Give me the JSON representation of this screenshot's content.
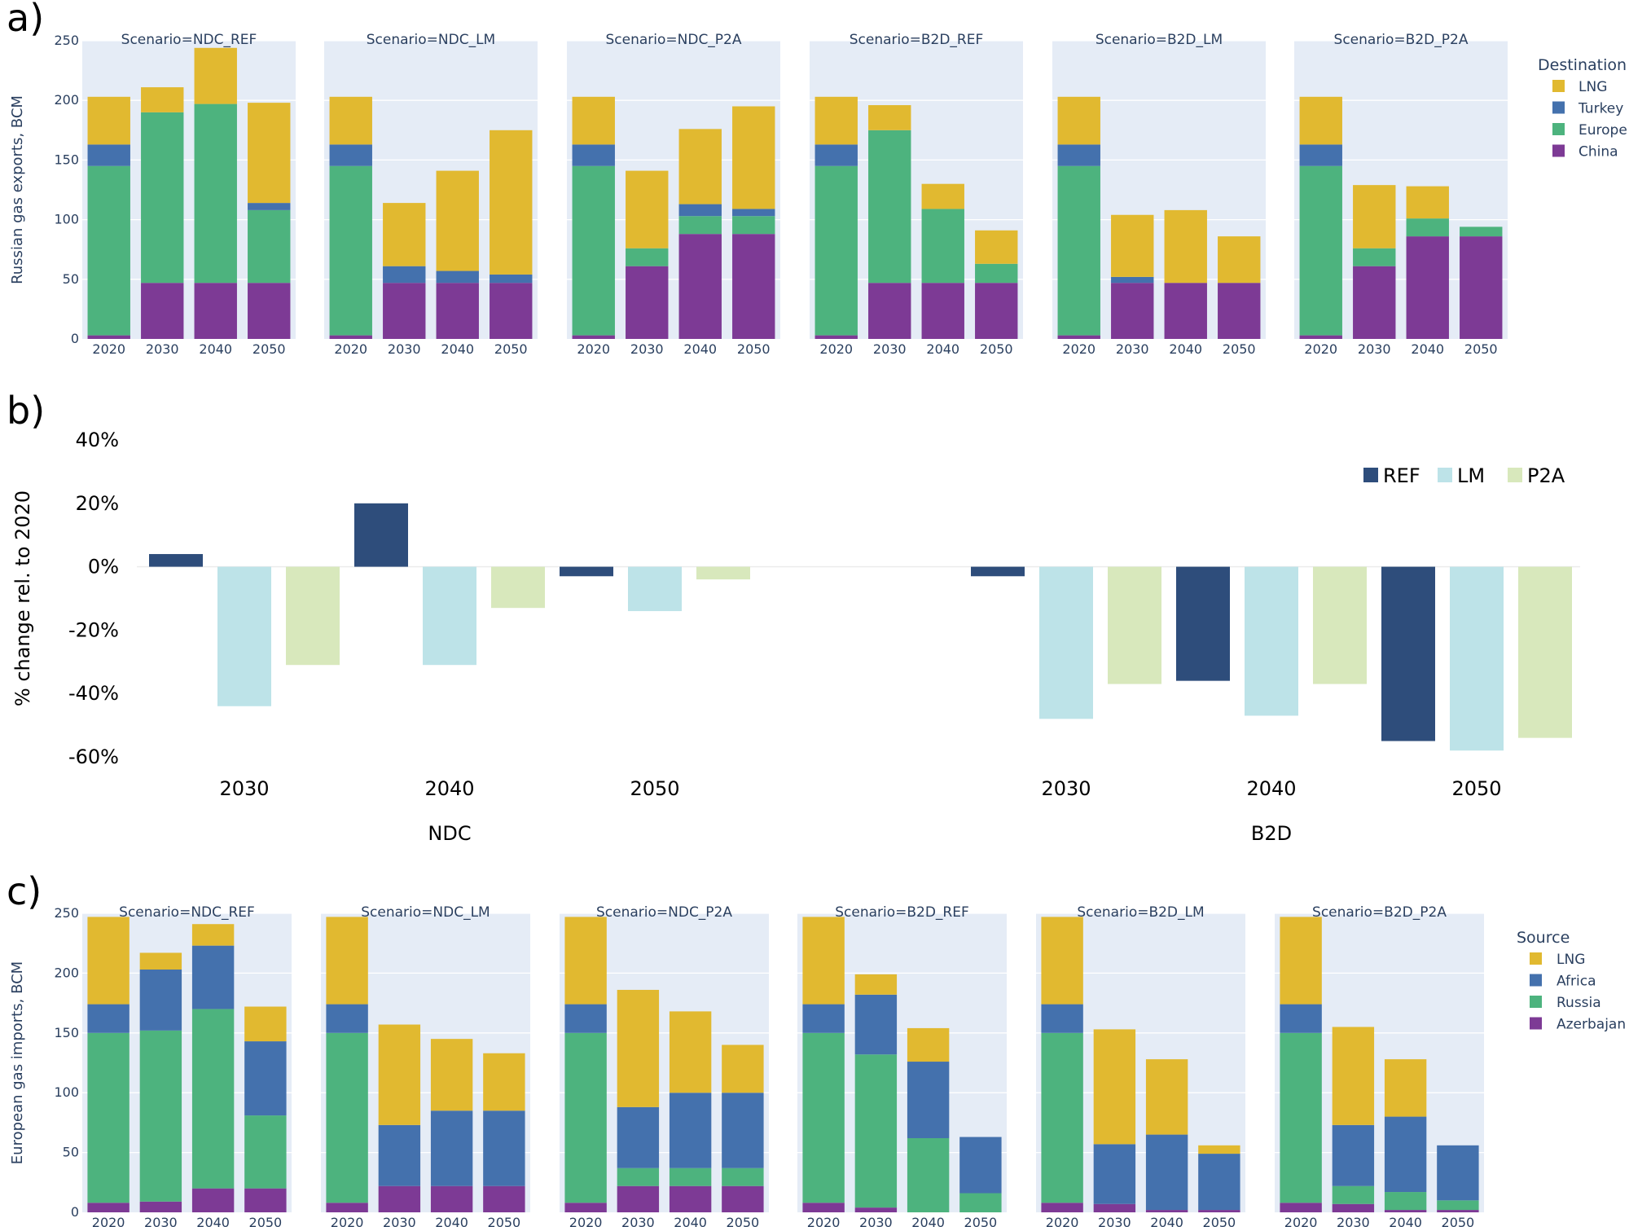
{
  "panel_labels": {
    "a": "a)",
    "b": "b)",
    "c": "c)"
  },
  "chart_data": [
    {
      "type": "bar",
      "stacked": true,
      "ylabel": "Russian gas exports, BCM",
      "ylim": [
        0,
        250
      ],
      "yticks": [
        0,
        50,
        100,
        150,
        200,
        250
      ],
      "categories": [
        "2020",
        "2030",
        "2040",
        "2050"
      ],
      "legend_title": "Destination",
      "stack_order": [
        "China",
        "Europe",
        "Turkey",
        "LNG"
      ],
      "legend": [
        "LNG",
        "Turkey",
        "Europe",
        "China"
      ],
      "colors": {
        "LNG": "#e1b930",
        "Turkey": "#4471ad",
        "Europe": "#4db37e",
        "China": "#7d3a95"
      },
      "facets": [
        {
          "title": "Scenario=NDC_REF",
          "series": {
            "China": [
              3,
              47,
              47,
              47
            ],
            "Europe": [
              142,
              143,
              150,
              61
            ],
            "Turkey": [
              18,
              0,
              0,
              6
            ],
            "LNG": [
              40,
              21,
              47,
              84
            ]
          }
        },
        {
          "title": "Scenario=NDC_LM",
          "series": {
            "China": [
              3,
              47,
              47,
              47
            ],
            "Europe": [
              142,
              0,
              0,
              0
            ],
            "Turkey": [
              18,
              14,
              10,
              7
            ],
            "LNG": [
              40,
              53,
              84,
              121
            ]
          }
        },
        {
          "title": "Scenario=NDC_P2A",
          "series": {
            "China": [
              3,
              61,
              88,
              88
            ],
            "Europe": [
              142,
              15,
              15,
              15
            ],
            "Turkey": [
              18,
              0,
              10,
              6
            ],
            "LNG": [
              40,
              65,
              63,
              86
            ]
          }
        },
        {
          "title": "Scenario=B2D_REF",
          "series": {
            "China": [
              3,
              47,
              47,
              47
            ],
            "Europe": [
              142,
              128,
              62,
              16
            ],
            "Turkey": [
              18,
              0,
              0,
              0
            ],
            "LNG": [
              40,
              21,
              21,
              28
            ]
          }
        },
        {
          "title": "Scenario=B2D_LM",
          "series": {
            "China": [
              3,
              47,
              47,
              47
            ],
            "Europe": [
              142,
              0,
              0,
              0
            ],
            "Turkey": [
              18,
              5,
              0,
              0
            ],
            "LNG": [
              40,
              52,
              61,
              39
            ]
          }
        },
        {
          "title": "Scenario=B2D_P2A",
          "series": {
            "China": [
              3,
              61,
              86,
              86
            ],
            "Europe": [
              142,
              15,
              15,
              8
            ],
            "Turkey": [
              18,
              0,
              0,
              0
            ],
            "LNG": [
              40,
              53,
              27,
              0
            ]
          }
        }
      ]
    },
    {
      "type": "bar",
      "grouped": true,
      "ylabel": "% change rel. to 2020",
      "ylim": [
        -60,
        40
      ],
      "yticks": [
        40,
        20,
        0,
        -20,
        -40,
        -60
      ],
      "ytick_labels": [
        "40%",
        "20%",
        "0%",
        "-20%",
        "-40%",
        "-60%"
      ],
      "legend": [
        "REF",
        "LM",
        "P2A"
      ],
      "colors": {
        "REF": "#2e4d7b",
        "LM": "#bde3e8",
        "P2A": "#d8e8bc"
      },
      "groups": [
        {
          "name": "NDC",
          "years": [
            "2030",
            "2040",
            "2050"
          ],
          "series": {
            "REF": [
              4,
              20,
              -3
            ],
            "LM": [
              -44,
              -31,
              -14
            ],
            "P2A": [
              -31,
              -13,
              -4
            ]
          }
        },
        {
          "name": "B2D",
          "years": [
            "2030",
            "2040",
            "2050"
          ],
          "series": {
            "REF": [
              -3,
              -36,
              -55
            ],
            "LM": [
              -48,
              -47,
              -58
            ],
            "P2A": [
              -37,
              -37,
              -54
            ]
          }
        }
      ]
    },
    {
      "type": "bar",
      "stacked": true,
      "ylabel": "European gas imports, BCM",
      "ylim": [
        0,
        250
      ],
      "yticks": [
        0,
        50,
        100,
        150,
        200,
        250
      ],
      "categories": [
        "2020",
        "2030",
        "2040",
        "2050"
      ],
      "legend_title": "Source",
      "stack_order": [
        "Azerbajan",
        "Russia",
        "Africa",
        "LNG"
      ],
      "legend": [
        "LNG",
        "Africa",
        "Russia",
        "Azerbajan"
      ],
      "colors": {
        "LNG": "#e1b930",
        "Africa": "#4471ad",
        "Russia": "#4db37e",
        "Azerbajan": "#7d3a95"
      },
      "facets": [
        {
          "title": "Scenario=NDC_REF",
          "series": {
            "Azerbajan": [
              8,
              9,
              20,
              20
            ],
            "Russia": [
              142,
              143,
              150,
              61
            ],
            "Africa": [
              24,
              51,
              53,
              62
            ],
            "LNG": [
              73,
              14,
              18,
              29
            ]
          }
        },
        {
          "title": "Scenario=NDC_LM",
          "series": {
            "Azerbajan": [
              8,
              22,
              22,
              22
            ],
            "Russia": [
              142,
              0,
              0,
              0
            ],
            "Africa": [
              24,
              51,
              63,
              63
            ],
            "LNG": [
              73,
              84,
              60,
              48
            ]
          }
        },
        {
          "title": "Scenario=NDC_P2A",
          "series": {
            "Azerbajan": [
              8,
              22,
              22,
              22
            ],
            "Russia": [
              142,
              15,
              15,
              15
            ],
            "Africa": [
              24,
              51,
              63,
              63
            ],
            "LNG": [
              73,
              98,
              68,
              40
            ]
          }
        },
        {
          "title": "Scenario=B2D_REF",
          "series": {
            "Azerbajan": [
              8,
              4,
              0,
              0
            ],
            "Russia": [
              142,
              128,
              62,
              16
            ],
            "Africa": [
              24,
              50,
              64,
              47
            ],
            "LNG": [
              73,
              17,
              28,
              0
            ]
          }
        },
        {
          "title": "Scenario=B2D_LM",
          "series": {
            "Azerbajan": [
              8,
              7,
              2,
              2
            ],
            "Russia": [
              142,
              0,
              0,
              0
            ],
            "Africa": [
              24,
              50,
              63,
              47
            ],
            "LNG": [
              73,
              96,
              63,
              7
            ]
          }
        },
        {
          "title": "Scenario=B2D_P2A",
          "series": {
            "Azerbajan": [
              8,
              7,
              2,
              2
            ],
            "Russia": [
              142,
              15,
              15,
              8
            ],
            "Africa": [
              24,
              51,
              63,
              46
            ],
            "LNG": [
              73,
              82,
              48,
              0
            ]
          }
        }
      ]
    }
  ]
}
